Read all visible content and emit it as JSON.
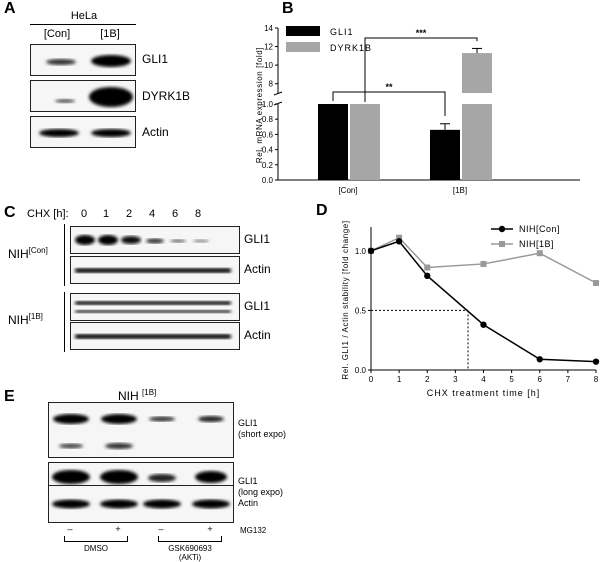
{
  "panels": {
    "A": "A",
    "B": "B",
    "C": "C",
    "D": "D",
    "E": "E"
  },
  "panel_a": {
    "cell_line": "HeLa",
    "lanes": [
      "[Con]",
      "[1B]"
    ],
    "rows": [
      "GLI1",
      "DYRK1B",
      "Actin"
    ]
  },
  "panel_c": {
    "time_label": "CHX [h]:",
    "times": [
      "0",
      "1",
      "2",
      "4",
      "6",
      "8"
    ],
    "group1_base": "NIH",
    "group1_sup": "[Con]",
    "group2_base": "NIH",
    "group2_sup": "[1B]",
    "rows": [
      "GLI1",
      "Actin"
    ]
  },
  "panel_e": {
    "title_base": "NIH",
    "title_sup": "[1B]",
    "rows": [
      {
        "name": "GLI1",
        "sub": "(short expo)"
      },
      {
        "name": "GLI1",
        "sub": "(long expo)"
      },
      {
        "name": "Actin",
        "sub": ""
      }
    ],
    "mg132_label": "MG132",
    "mg132_signs": [
      "–",
      "+",
      "–",
      "+"
    ],
    "group1": "DMSO",
    "group2_line1": "GSK690693",
    "group2_line2": "(AKTi)"
  },
  "chart_data": [
    {
      "type": "bar",
      "panel": "B",
      "categories": [
        "[Con]",
        "[1B]"
      ],
      "series": [
        {
          "name": "GLI1",
          "values": [
            1.0,
            0.66
          ],
          "errors": [
            0,
            0.08
          ],
          "color": "#000000"
        },
        {
          "name": "DYRK1B",
          "values": [
            1.0,
            11.3
          ],
          "errors": [
            0,
            0.5
          ],
          "color": "#a6a6a6"
        }
      ],
      "ylabel": "Rel. mRNA expression [fold]",
      "yaxis_break": [
        1.0,
        7.0
      ],
      "ylim_lower": [
        0,
        1.0
      ],
      "ylim_upper": [
        7,
        14
      ],
      "yticks_lower": [
        "0.0",
        "0.2",
        "0.4",
        "0.6",
        "0.8",
        "1.0"
      ],
      "yticks_upper": [
        "8",
        "10",
        "12",
        "14"
      ],
      "significance": [
        "**",
        "***"
      ],
      "legend_position": "top-left"
    },
    {
      "type": "line",
      "panel": "D",
      "x": [
        0,
        1,
        2,
        4,
        6,
        8
      ],
      "series": [
        {
          "name": "NIH[Con]",
          "values": [
            1.0,
            1.08,
            0.79,
            0.38,
            0.09,
            0.07
          ],
          "color": "#000000",
          "marker": "circle"
        },
        {
          "name": "NIH[1B]",
          "values": [
            1.0,
            1.11,
            0.86,
            0.89,
            0.98,
            0.73
          ],
          "color": "#999999",
          "marker": "square"
        }
      ],
      "xlabel": "CHX treatment time [h]",
      "ylabel": "Rel. GLI1 / Actin stability [fold change]",
      "xlim": [
        0,
        8
      ],
      "ylim": [
        0,
        1.2
      ],
      "xticks": [
        "0",
        "1",
        "2",
        "3",
        "4",
        "5",
        "6",
        "7",
        "8"
      ],
      "yticks": [
        "0.0",
        "0.5",
        "1.0"
      ],
      "halflife_guide": {
        "y": 0.5,
        "x": 3.45
      },
      "legend_position": "top-right"
    }
  ]
}
